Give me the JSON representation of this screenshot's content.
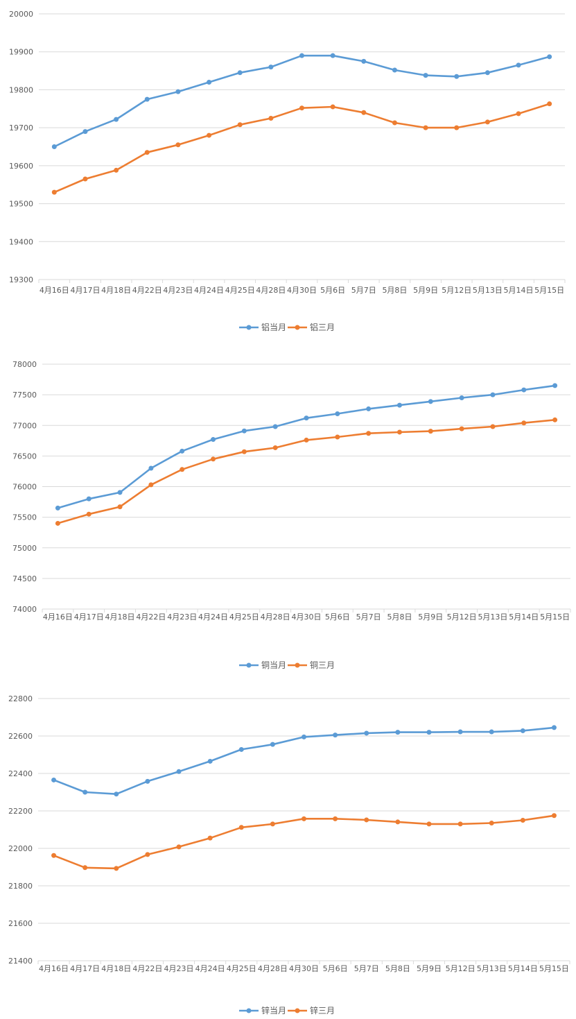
{
  "chart_data": [
    {
      "type": "line",
      "categories": [
        "4月16日",
        "4月17日",
        "4月18日",
        "4月22日",
        "4月23日",
        "4月24日",
        "4月25日",
        "4月28日",
        "4月30日",
        "5月6日",
        "5月7日",
        "5月8日",
        "5月9日",
        "5月12日",
        "5月13日",
        "5月14日",
        "5月15日"
      ],
      "ylim": [
        19300,
        20000
      ],
      "yticks": [
        19300,
        19400,
        19500,
        19600,
        19700,
        19800,
        19900,
        20000
      ],
      "grid": true,
      "legend_position": "bottom",
      "series": [
        {
          "name": "铝当月",
          "color": "#5b9bd5",
          "values": [
            19650,
            19690,
            19722,
            19775,
            19795,
            19820,
            19845,
            19860,
            19890,
            19890,
            19875,
            19852,
            19838,
            19835,
            19845,
            19865,
            19887
          ]
        },
        {
          "name": "铝三月",
          "color": "#ed7d31",
          "values": [
            19530,
            19565,
            19588,
            19635,
            19655,
            19680,
            19708,
            19725,
            19752,
            19755,
            19740,
            19713,
            19700,
            19700,
            19715,
            19737,
            19763
          ]
        }
      ]
    },
    {
      "type": "line",
      "categories": [
        "4月16日",
        "4月17日",
        "4月18日",
        "4月22日",
        "4月23日",
        "4月24日",
        "4月25日",
        "4月28日",
        "4月30日",
        "5月6日",
        "5月7日",
        "5月8日",
        "5月9日",
        "5月12日",
        "5月13日",
        "5月14日",
        "5月15日"
      ],
      "ylim": [
        74000,
        78000
      ],
      "yticks": [
        74000,
        74500,
        75000,
        75500,
        76000,
        76500,
        77000,
        77500,
        78000
      ],
      "grid": true,
      "legend_position": "bottom",
      "series": [
        {
          "name": "铜当月",
          "color": "#5b9bd5",
          "values": [
            75650,
            75800,
            75905,
            76300,
            76580,
            76770,
            76910,
            76980,
            77120,
            77190,
            77270,
            77330,
            77390,
            77450,
            77500,
            77580,
            77650
          ]
        },
        {
          "name": "铜三月",
          "color": "#ed7d31",
          "values": [
            75400,
            75550,
            75670,
            76030,
            76280,
            76450,
            76570,
            76635,
            76760,
            76810,
            76870,
            76890,
            76905,
            76945,
            76980,
            77040,
            77090
          ]
        }
      ]
    },
    {
      "type": "line",
      "categories": [
        "4月16日",
        "4月17日",
        "4月18日",
        "4月22日",
        "4月23日",
        "4月24日",
        "4月25日",
        "4月28日",
        "4月30日",
        "5月6日",
        "5月7日",
        "5月8日",
        "5月9日",
        "5月12日",
        "5月13日",
        "5月14日",
        "5月15日"
      ],
      "ylim": [
        21400,
        22800
      ],
      "yticks": [
        21400,
        21600,
        21800,
        22000,
        22200,
        22400,
        22600,
        22800
      ],
      "grid": true,
      "legend_position": "bottom",
      "series": [
        {
          "name": "锌当月",
          "color": "#5b9bd5",
          "values": [
            22365,
            22300,
            22290,
            22358,
            22410,
            22465,
            22528,
            22555,
            22595,
            22605,
            22615,
            22620,
            22620,
            22622,
            22622,
            22628,
            22645
          ]
        },
        {
          "name": "锌三月",
          "color": "#ed7d31",
          "values": [
            21962,
            21897,
            21893,
            21967,
            22008,
            22055,
            22112,
            22130,
            22158,
            22158,
            22152,
            22141,
            22130,
            22130,
            22135,
            22150,
            22175
          ]
        }
      ]
    }
  ]
}
